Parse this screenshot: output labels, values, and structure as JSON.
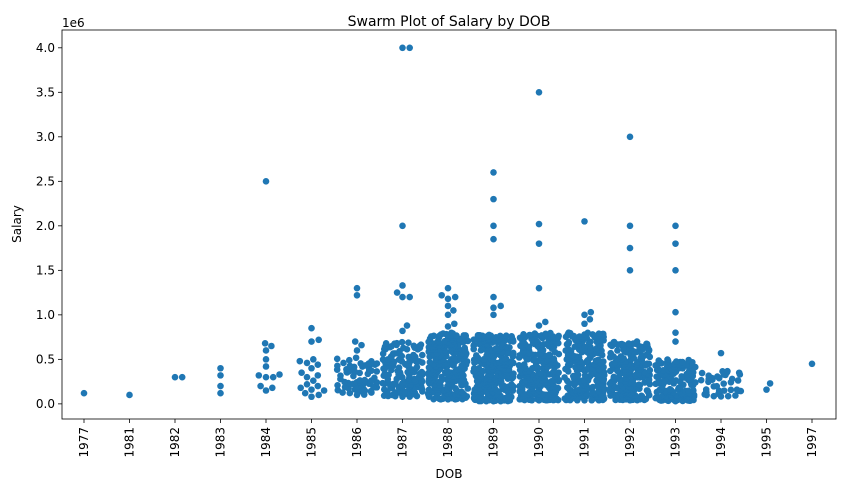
{
  "chart_data": {
    "type": "scatter",
    "subtype": "swarm",
    "title": "Swarm Plot of Salary by DOB",
    "xlabel": "DOB",
    "ylabel": "Salary",
    "y_scale_label": "1e6",
    "ylim": [
      -170000,
      4200000
    ],
    "yticks": [
      0.0,
      0.5,
      1.0,
      1.5,
      2.0,
      2.5,
      3.0,
      3.5,
      4.0
    ],
    "ytick_labels": [
      "0.0",
      "0.5",
      "1.0",
      "1.5",
      "2.0",
      "2.5",
      "3.0",
      "3.5",
      "4.0"
    ],
    "categories": [
      "1977",
      "1981",
      "1982",
      "1983",
      "1984",
      "1985",
      "1986",
      "1987",
      "1988",
      "1989",
      "1990",
      "1991",
      "1992",
      "1993",
      "1994",
      "1995",
      "1997"
    ],
    "point_color": "#1f77b4",
    "grid": false,
    "outliers": {
      "1977": [
        120000
      ],
      "1981": [
        100000
      ],
      "1982": [
        300000,
        300000
      ],
      "1983": [
        400000,
        320000,
        200000,
        120000
      ],
      "1984": [
        2500000,
        680000,
        650000,
        600000,
        500000,
        420000,
        330000,
        320000,
        300000,
        300000,
        200000,
        180000,
        150000
      ],
      "1985": [
        850000,
        720000,
        700000,
        500000,
        480000,
        460000,
        440000,
        400000,
        350000,
        320000,
        300000,
        260000,
        220000,
        200000,
        180000,
        160000,
        150000,
        120000,
        100000,
        80000
      ],
      "1986": [
        1300000,
        1220000,
        700000,
        660000,
        600000
      ],
      "1987": [
        4000000,
        4000000,
        2000000,
        1330000,
        1250000,
        1200000,
        1200000,
        880000,
        820000
      ],
      "1988": [
        1300000,
        1220000,
        1200000,
        1180000,
        1100000,
        1050000,
        1000000,
        900000,
        870000
      ],
      "1989": [
        2600000,
        2300000,
        2000000,
        1850000,
        1200000,
        1100000,
        1080000,
        1000000
      ],
      "1990": [
        3500000,
        2020000,
        1800000,
        1300000,
        920000,
        880000
      ],
      "1991": [
        2050000,
        1030000,
        1000000,
        950000,
        900000
      ],
      "1992": [
        3000000,
        2000000,
        1750000,
        1500000
      ],
      "1993": [
        2000000,
        1800000,
        1500000,
        1030000,
        800000,
        700000
      ],
      "1994": [
        570000
      ],
      "1995": [
        230000,
        160000
      ],
      "1997": [
        450000
      ]
    },
    "bulk_distribution": {
      "1986": {
        "count": 70,
        "min": 100000,
        "max": 520000
      },
      "1987": {
        "count": 150,
        "min": 80000,
        "max": 700000
      },
      "1988": {
        "count": 260,
        "min": 50000,
        "max": 800000
      },
      "1989": {
        "count": 300,
        "min": 30000,
        "max": 800000
      },
      "1990": {
        "count": 280,
        "min": 40000,
        "max": 800000
      },
      "1991": {
        "count": 260,
        "min": 40000,
        "max": 800000
      },
      "1992": {
        "count": 220,
        "min": 40000,
        "max": 700000
      },
      "1993": {
        "count": 160,
        "min": 30000,
        "max": 500000
      },
      "1994": {
        "count": 40,
        "min": 80000,
        "max": 380000
      }
    }
  }
}
